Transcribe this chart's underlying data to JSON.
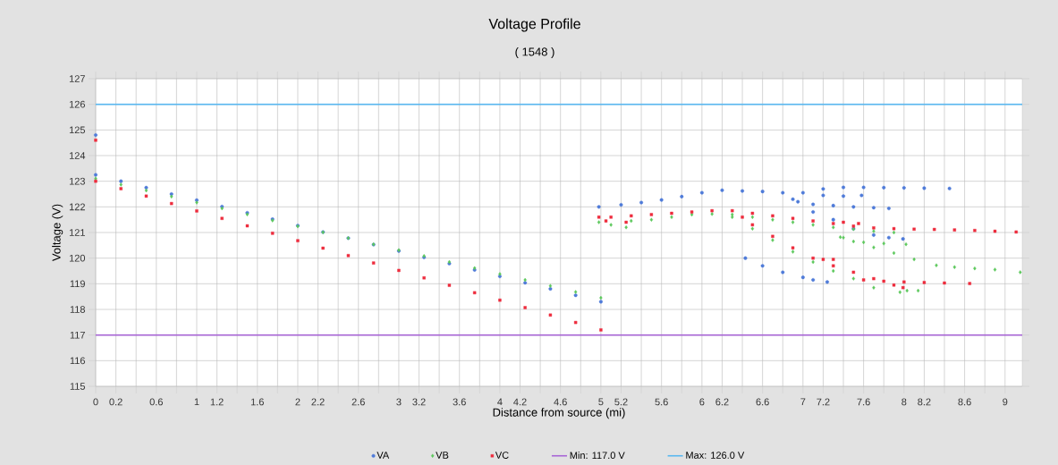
{
  "chart_data": {
    "type": "scatter",
    "title": "Voltage Profile",
    "subtitle": "( 1548 )",
    "xlabel": "Distance from source (mi)",
    "ylabel": "Voltage (V)",
    "xlim": [
      0,
      9.17
    ],
    "ylim": [
      115,
      127
    ],
    "xticks": [
      0,
      0.2,
      {
        "value": 0.4,
        "label": null
      },
      0.6,
      {
        "value": 0.8,
        "label": null
      },
      1,
      1.2,
      {
        "value": 1.4,
        "label": null
      },
      1.6,
      {
        "value": 1.8,
        "label": null
      },
      2,
      2.2,
      {
        "value": 2.4,
        "label": null
      },
      2.6,
      {
        "value": 2.8,
        "label": null
      },
      3,
      3.2,
      {
        "value": 3.4,
        "label": null
      },
      3.6,
      {
        "value": 3.8,
        "label": null
      },
      4,
      4.2,
      {
        "value": 4.4,
        "label": null
      },
      4.6,
      {
        "value": 4.8,
        "label": null
      },
      5,
      5.2,
      {
        "value": 5.4,
        "label": null
      },
      5.6,
      {
        "value": 5.8,
        "label": null
      },
      6,
      6.2,
      {
        "value": 6.4,
        "label": null
      },
      6.6,
      {
        "value": 6.8,
        "label": null
      },
      7,
      7.2,
      {
        "value": 7.4,
        "label": null
      },
      7.6,
      {
        "value": 7.8,
        "label": null
      },
      8,
      8.2,
      {
        "value": 8.4,
        "label": null
      },
      8.6,
      {
        "value": 8.8,
        "label": null
      },
      9
    ],
    "yticks": [
      115,
      116,
      117,
      118,
      119,
      120,
      121,
      122,
      123,
      124,
      125,
      126,
      127
    ],
    "grid": true,
    "legend": "bottom",
    "series": [
      {
        "name": "VA",
        "color": "#4f7bd9",
        "marker": "circle",
        "x": [
          0,
          0,
          0.25,
          0.5,
          0.75,
          1,
          1.25,
          1.5,
          1.75,
          2,
          2.25,
          2.5,
          2.75,
          3,
          3.25,
          3.5,
          3.75,
          4,
          4.25,
          4.5,
          4.75,
          5,
          4.98,
          5.2,
          5.4,
          5.6,
          5.8,
          6.0,
          6.2,
          6.4,
          6.6,
          6.8,
          7.0,
          7.2,
          7.4,
          7.6,
          7.8,
          8.0,
          8.2,
          8.45,
          6.9,
          7.1,
          7.3,
          7.5,
          7.7,
          7.85,
          7.2,
          7.4,
          7.58,
          6.95,
          7.1,
          7.3,
          7.5,
          7.7,
          7.85,
          7.99,
          6.43,
          6.6,
          6.8,
          7.0,
          7.1,
          7.24
        ],
        "values": [
          124.8,
          123.25,
          123.0,
          122.75,
          122.5,
          122.26,
          122.01,
          121.77,
          121.52,
          121.27,
          121.02,
          120.78,
          120.53,
          120.28,
          120.03,
          119.79,
          119.54,
          119.29,
          119.04,
          118.8,
          118.55,
          118.3,
          122.0,
          122.08,
          122.17,
          122.27,
          122.4,
          122.55,
          122.65,
          122.62,
          122.6,
          122.55,
          122.55,
          122.7,
          122.76,
          122.76,
          122.75,
          122.74,
          122.73,
          122.72,
          122.3,
          122.1,
          122.05,
          122.0,
          121.97,
          121.94,
          122.45,
          122.42,
          122.45,
          122.2,
          121.8,
          121.5,
          121.15,
          120.9,
          120.8,
          120.75,
          120.0,
          119.7,
          119.45,
          119.25,
          119.15,
          119.07
        ]
      },
      {
        "name": "VB",
        "color": "#5cc85c",
        "marker": "diamond",
        "x": [
          0,
          0.25,
          0.5,
          0.75,
          1,
          1.25,
          1.5,
          1.75,
          2,
          2.25,
          2.5,
          2.75,
          3,
          3.25,
          3.5,
          3.75,
          4,
          4.25,
          4.5,
          4.75,
          5,
          4.98,
          5.1,
          5.25,
          5.3,
          5.5,
          5.7,
          5.9,
          6.1,
          6.3,
          6.5,
          6.7,
          6.9,
          7.1,
          7.3,
          7.5,
          7.7,
          7.9,
          7.37,
          7.5,
          7.7,
          7.9,
          8.1,
          8.32,
          8.5,
          8.7,
          8.9,
          9.15,
          7.4,
          7.6,
          7.8,
          8.02,
          6.3,
          6.5,
          6.7,
          6.9,
          7.1,
          7.3,
          7.5,
          7.7,
          7.96,
          8.03,
          8.14
        ],
        "values": [
          123.1,
          122.87,
          122.64,
          122.4,
          122.17,
          121.94,
          121.71,
          121.47,
          121.24,
          121.01,
          120.78,
          120.54,
          120.31,
          120.08,
          119.85,
          119.61,
          119.38,
          119.15,
          118.92,
          118.68,
          118.45,
          121.4,
          121.3,
          121.2,
          121.45,
          121.5,
          121.6,
          121.7,
          121.72,
          121.7,
          121.6,
          121.5,
          121.4,
          121.3,
          121.2,
          121.13,
          121.05,
          121.0,
          120.82,
          120.65,
          120.42,
          120.2,
          119.95,
          119.72,
          119.65,
          119.6,
          119.55,
          119.45,
          120.8,
          120.62,
          120.57,
          120.54,
          121.6,
          121.15,
          120.7,
          120.25,
          119.85,
          119.5,
          119.2,
          118.85,
          118.67,
          118.73,
          118.73
        ]
      },
      {
        "name": "VC",
        "color": "#ee2b3c",
        "marker": "square",
        "x": [
          0,
          0,
          0.25,
          0.5,
          0.75,
          1,
          1.25,
          1.5,
          1.75,
          2,
          2.25,
          2.5,
          2.75,
          3,
          3.25,
          3.5,
          3.75,
          4,
          4.25,
          4.5,
          4.75,
          5,
          4.98,
          5.05,
          5.25,
          5.1,
          5.3,
          5.5,
          5.7,
          5.9,
          6.1,
          6.3,
          6.5,
          6.7,
          6.9,
          7.1,
          7.3,
          7.5,
          7.7,
          7.9,
          8.1,
          8.3,
          8.5,
          8.7,
          8.9,
          9.11,
          7.4,
          7.55,
          6.4,
          6.5,
          6.7,
          6.9,
          7.1,
          7.3,
          7.5,
          7.7,
          7.9,
          7.99,
          7.6,
          7.8,
          8.0,
          8.2,
          8.4,
          8.65,
          7.2,
          7.3
        ],
        "values": [
          124.6,
          123.0,
          122.71,
          122.42,
          122.13,
          121.84,
          121.55,
          121.26,
          120.97,
          120.68,
          120.39,
          120.1,
          119.81,
          119.52,
          119.23,
          118.94,
          118.65,
          118.36,
          118.07,
          117.78,
          117.49,
          117.2,
          121.6,
          121.45,
          121.4,
          121.6,
          121.65,
          121.7,
          121.75,
          121.8,
          121.85,
          121.85,
          121.75,
          121.65,
          121.55,
          121.45,
          121.35,
          121.25,
          121.18,
          121.15,
          121.13,
          121.12,
          121.1,
          121.08,
          121.05,
          121.02,
          121.4,
          121.35,
          121.6,
          121.3,
          120.85,
          120.4,
          120.0,
          119.7,
          119.45,
          119.2,
          118.95,
          118.85,
          119.15,
          119.1,
          119.07,
          119.05,
          119.03,
          119.01,
          119.95,
          119.95
        ]
      }
    ],
    "ref_lines": [
      {
        "axis": "y",
        "value": 117,
        "label": "Min: 117.0 V",
        "color": "#a866d6"
      },
      {
        "axis": "y",
        "value": 126,
        "label": "Max: 126.0 V",
        "color": "#5ab8f0"
      }
    ]
  }
}
